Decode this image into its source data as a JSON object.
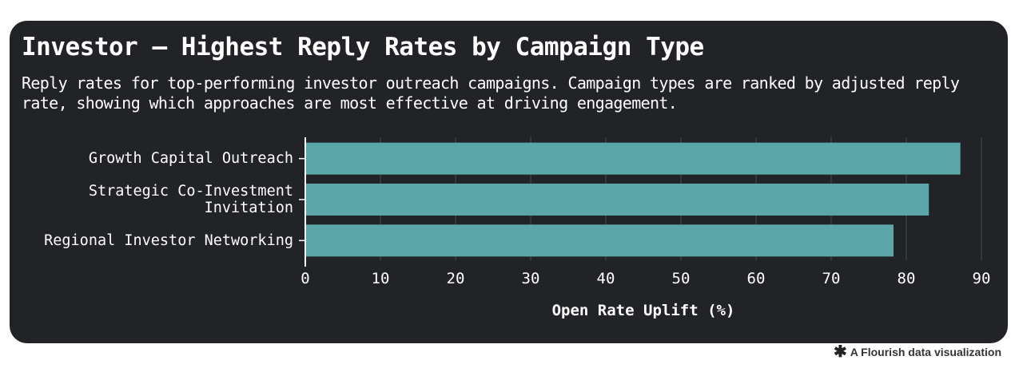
{
  "title": "Investor – Highest Reply Rates by Campaign Type",
  "subtitle": "Reply rates for top-performing investor outreach campaigns. Campaign types are ranked by adjusted reply rate, showing which approaches are most effective at driving engagement.",
  "footer": {
    "logo_icon": "asterisk-icon",
    "text": "A Flourish data visualization"
  },
  "colors": {
    "background": "#222326",
    "bar": "#5ba6a9",
    "text": "#ffffff"
  },
  "chart_data": {
    "type": "bar",
    "orientation": "horizontal",
    "categories": [
      [
        "Growth Capital Outreach"
      ],
      [
        "Strategic Co-Investment",
        "Invitation"
      ],
      [
        "Regional Investor Networking"
      ]
    ],
    "values": [
      87.2,
      83.0,
      78.3
    ],
    "xlabel": "Open Rate Uplift (%)",
    "ylabel": "",
    "xlim": [
      0,
      90
    ],
    "xticks": [
      "0",
      "10",
      "20",
      "30",
      "40",
      "50",
      "60",
      "70",
      "80",
      "90"
    ],
    "grid": true,
    "legend": "none"
  }
}
